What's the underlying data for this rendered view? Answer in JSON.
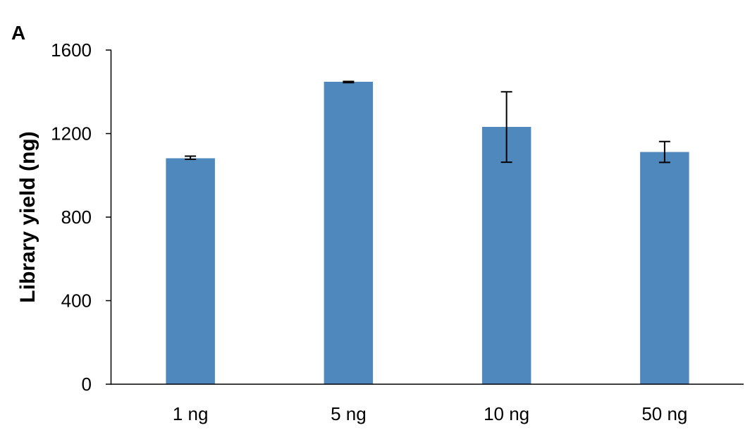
{
  "panel_label": "A",
  "chart_data": {
    "type": "bar",
    "title": "",
    "xlabel": "",
    "ylabel": "Library yield (ng)",
    "categories": [
      "1 ng",
      "5 ng",
      "10 ng",
      "50 ng"
    ],
    "values": [
      1082,
      1448,
      1232,
      1112
    ],
    "error_low": [
      1077,
      1444,
      1063,
      1062
    ],
    "error_high": [
      1092,
      1450,
      1400,
      1162
    ],
    "ylim": [
      0,
      1600
    ],
    "yticks": [
      0,
      400,
      800,
      1200,
      1600
    ],
    "ytick_labels": [
      "0",
      "400",
      "800",
      "1200",
      "1600"
    ],
    "bar_color": "#4f88bc",
    "grid": false,
    "legend": "none"
  }
}
